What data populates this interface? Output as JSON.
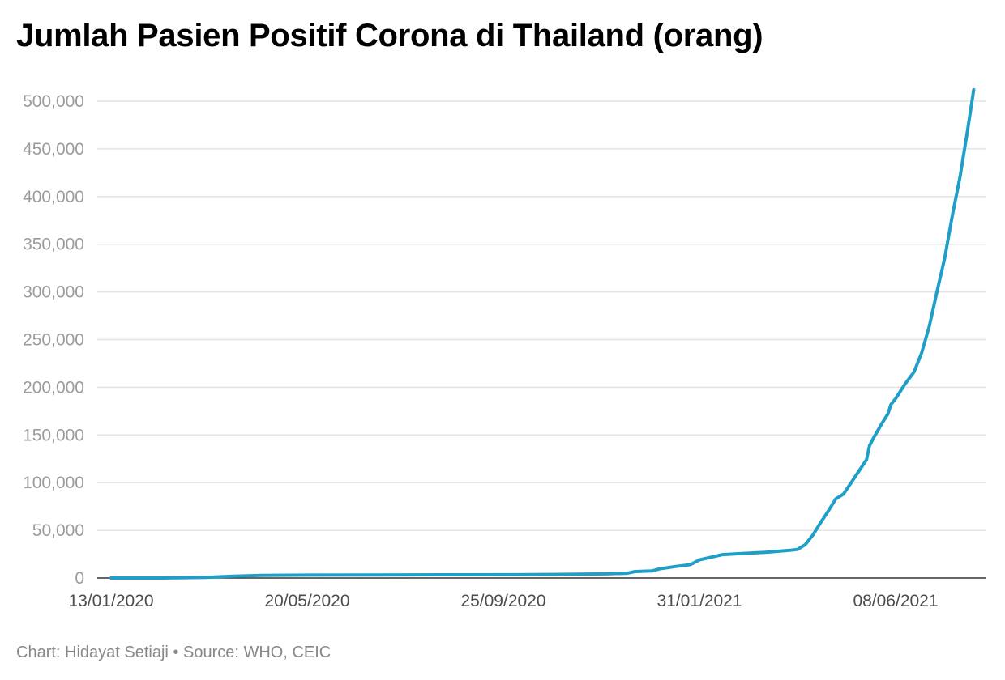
{
  "chart_data": {
    "type": "line",
    "title": "Jumlah Pasien Positif Corona di Thailand (orang)",
    "xlabel": "",
    "ylabel": "",
    "ylim": [
      0,
      500000
    ],
    "yticks": [
      0,
      50000,
      100000,
      150000,
      200000,
      250000,
      300000,
      350000,
      400000,
      450000,
      500000
    ],
    "ytick_labels": [
      "0",
      "50,000",
      "100,000",
      "150,000",
      "200,000",
      "250,000",
      "300,000",
      "350,000",
      "400,000",
      "450,000",
      "500,000"
    ],
    "xticks": [
      "2020-01-13",
      "2020-05-20",
      "2020-09-25",
      "2021-01-31",
      "2021-06-08"
    ],
    "xtick_labels": [
      "13/01/2020",
      "20/05/2020",
      "25/09/2020",
      "31/01/2021",
      "08/06/2021"
    ],
    "xlim": [
      "2020-01-13",
      "2021-08-01"
    ],
    "grid": true,
    "color": "#1f9fc8",
    "series": [
      {
        "x": [
          "2020-01-13",
          "2020-02-15",
          "2020-03-15",
          "2020-03-31",
          "2020-04-20",
          "2020-05-20",
          "2020-07-01",
          "2020-08-15",
          "2020-09-25",
          "2020-11-01",
          "2020-12-01",
          "2020-12-15",
          "2020-12-20",
          "2020-12-31",
          "2021-01-05",
          "2021-01-15",
          "2021-01-20",
          "2021-01-25",
          "2021-01-31",
          "2021-02-15",
          "2021-03-01",
          "2021-03-15",
          "2021-03-31",
          "2021-04-05",
          "2021-04-10",
          "2021-04-15",
          "2021-04-20",
          "2021-04-25",
          "2021-04-30",
          "2021-05-05",
          "2021-05-10",
          "2021-05-15",
          "2021-05-20",
          "2021-05-22",
          "2021-05-25",
          "2021-05-30",
          "2021-06-03",
          "2021-06-05",
          "2021-06-08",
          "2021-06-14",
          "2021-06-20",
          "2021-06-25",
          "2021-06-30",
          "2021-07-05",
          "2021-07-10",
          "2021-07-15",
          "2021-07-20",
          "2021-07-25",
          "2021-07-29"
        ],
        "y": [
          0,
          40,
          700,
          1800,
          2800,
          3040,
          3200,
          3380,
          3500,
          3800,
          4300,
          5000,
          6800,
          7400,
          9600,
          12000,
          13000,
          14000,
          19000,
          24500,
          25800,
          27000,
          29000,
          30000,
          35000,
          45000,
          58000,
          70000,
          83000,
          88000,
          100000,
          112000,
          124000,
          139000,
          148000,
          162000,
          172000,
          182000,
          188000,
          203000,
          216000,
          236000,
          264000,
          300000,
          335000,
          380000,
          420000,
          470000,
          512000
        ]
      }
    ],
    "footer": "Chart: Hidayat Setiaji • Source: WHO, CEIC"
  }
}
